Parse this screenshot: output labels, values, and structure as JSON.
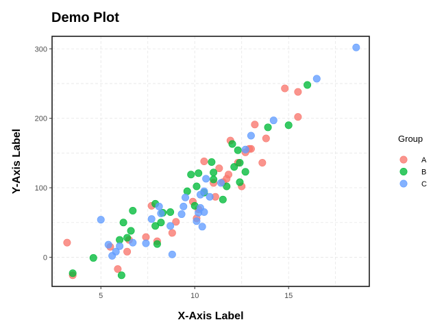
{
  "chart_data": {
    "type": "scatter",
    "title": "Demo Plot",
    "xlabel": "X-Axis Label",
    "ylabel": "Y-Axis Label",
    "xlim": [
      2.4,
      19.3
    ],
    "ylim": [
      -42,
      318
    ],
    "xticks": [
      5,
      10,
      15
    ],
    "yticks": [
      0,
      100,
      200,
      300
    ],
    "grid": true,
    "legend": {
      "title": "Group",
      "position": "right"
    },
    "series": [
      {
        "name": "A",
        "color": "#F8766D",
        "points": [
          [
            3.2,
            21
          ],
          [
            3.5,
            -26
          ],
          [
            5.5,
            15
          ],
          [
            5.9,
            -17
          ],
          [
            6.4,
            8
          ],
          [
            6.5,
            25
          ],
          [
            7.4,
            29
          ],
          [
            7.7,
            74
          ],
          [
            8.0,
            23
          ],
          [
            8.8,
            35
          ],
          [
            9.0,
            51
          ],
          [
            9.9,
            80
          ],
          [
            10.1,
            56
          ],
          [
            10.2,
            69
          ],
          [
            10.5,
            138
          ],
          [
            11.0,
            107
          ],
          [
            11.1,
            87
          ],
          [
            11.3,
            128
          ],
          [
            11.5,
            108
          ],
          [
            11.7,
            113
          ],
          [
            11.8,
            119
          ],
          [
            11.9,
            168
          ],
          [
            12.3,
            136
          ],
          [
            12.5,
            102
          ],
          [
            12.7,
            151
          ],
          [
            12.9,
            156
          ],
          [
            13.0,
            156
          ],
          [
            13.2,
            191
          ],
          [
            13.6,
            136
          ],
          [
            13.8,
            171
          ],
          [
            14.8,
            243
          ],
          [
            15.5,
            238
          ],
          [
            15.5,
            202
          ]
        ]
      },
      {
        "name": "B",
        "color": "#00BA38",
        "points": [
          [
            3.5,
            -23
          ],
          [
            4.6,
            -1
          ],
          [
            6.0,
            25
          ],
          [
            6.1,
            -26
          ],
          [
            6.2,
            50
          ],
          [
            6.4,
            28
          ],
          [
            6.6,
            38
          ],
          [
            6.7,
            67
          ],
          [
            7.9,
            45
          ],
          [
            7.9,
            77
          ],
          [
            8.0,
            19
          ],
          [
            8.2,
            50
          ],
          [
            8.3,
            64
          ],
          [
            8.7,
            65
          ],
          [
            9.6,
            95
          ],
          [
            9.8,
            119
          ],
          [
            10.0,
            74
          ],
          [
            10.1,
            102
          ],
          [
            10.2,
            121
          ],
          [
            10.5,
            93
          ],
          [
            10.9,
            137
          ],
          [
            11.0,
            122
          ],
          [
            11.0,
            112
          ],
          [
            11.5,
            83
          ],
          [
            11.7,
            102
          ],
          [
            12.0,
            163
          ],
          [
            12.1,
            130
          ],
          [
            12.3,
            154
          ],
          [
            12.4,
            108
          ],
          [
            12.4,
            136
          ],
          [
            12.7,
            123
          ],
          [
            13.9,
            187
          ],
          [
            15.0,
            190
          ],
          [
            16.0,
            248
          ]
        ]
      },
      {
        "name": "C",
        "color": "#619CFF",
        "points": [
          [
            5.0,
            54
          ],
          [
            5.4,
            18
          ],
          [
            5.6,
            2
          ],
          [
            5.8,
            8
          ],
          [
            6.0,
            16
          ],
          [
            6.7,
            21
          ],
          [
            7.4,
            20
          ],
          [
            7.7,
            55
          ],
          [
            8.1,
            73
          ],
          [
            8.2,
            63
          ],
          [
            8.7,
            45
          ],
          [
            8.8,
            4
          ],
          [
            9.3,
            62
          ],
          [
            9.4,
            73
          ],
          [
            9.5,
            86
          ],
          [
            10.1,
            52
          ],
          [
            10.2,
            64
          ],
          [
            10.3,
            90
          ],
          [
            10.3,
            71
          ],
          [
            10.4,
            44
          ],
          [
            10.5,
            65
          ],
          [
            10.5,
            95
          ],
          [
            10.6,
            113
          ],
          [
            10.8,
            87
          ],
          [
            11.4,
            107
          ],
          [
            12.7,
            155
          ],
          [
            13.0,
            175
          ],
          [
            14.2,
            197
          ],
          [
            16.5,
            257
          ],
          [
            18.6,
            302
          ]
        ]
      }
    ]
  }
}
